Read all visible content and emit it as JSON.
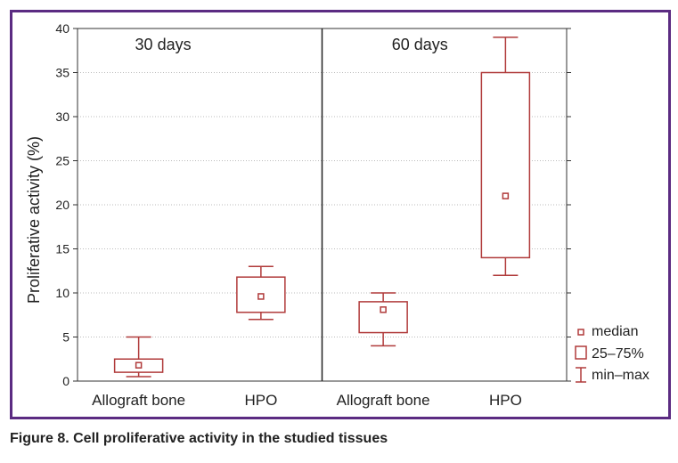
{
  "caption": "Figure 8. Cell proliferative activity in the studied tissues",
  "chart_data": {
    "type": "boxplot",
    "ylabel": "Proliferative activity (%)",
    "ylim": [
      0,
      40
    ],
    "yticks": [
      0,
      5,
      10,
      15,
      20,
      25,
      30,
      35,
      40
    ],
    "grid": true,
    "panels": [
      {
        "title": "30 days",
        "groups": [
          {
            "label": "Allograft bone",
            "min": 0.5,
            "q1": 1.0,
            "median": 1.8,
            "q3": 2.5,
            "max": 5.0
          },
          {
            "label": "HPO",
            "min": 7.0,
            "q1": 7.8,
            "median": 9.6,
            "q3": 11.8,
            "max": 13.0
          }
        ]
      },
      {
        "title": "60 days",
        "groups": [
          {
            "label": "Allograft bone",
            "min": 4.0,
            "q1": 5.5,
            "median": 8.1,
            "q3": 9.0,
            "max": 10.0
          },
          {
            "label": "HPO",
            "min": 12.0,
            "q1": 14.0,
            "median": 21.0,
            "q3": 35.0,
            "max": 39.0
          }
        ]
      }
    ],
    "legend": {
      "position": "right",
      "items": [
        "median",
        "25–75%",
        "min–max"
      ]
    },
    "color": "#b03a3a"
  }
}
